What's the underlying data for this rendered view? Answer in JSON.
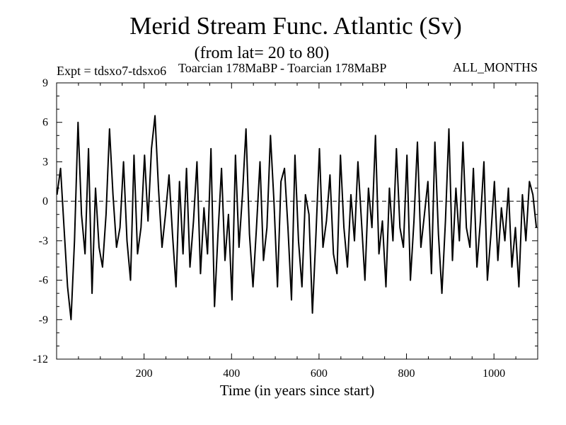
{
  "chart_data": {
    "type": "line",
    "title": "Merid Stream Func. Atlantic (Sv)",
    "subtitle": "(from lat= 20 to 80)",
    "expt_label": "Expt = tdsxo7-tdsxo6",
    "run_label": "Toarcian 178MaBP - Toarcian 178MaBP",
    "months_label": "ALL_MONTHS",
    "xlabel": "Time (in years since start)",
    "ylabel": "",
    "xlim": [
      0,
      1100
    ],
    "ylim": [
      -12,
      9
    ],
    "xticks": [
      200,
      400,
      600,
      800,
      1000
    ],
    "yticks": [
      -12,
      -9,
      -6,
      -3,
      0,
      3,
      6,
      9
    ],
    "zero_line": "dashed",
    "grid": false,
    "series": [
      {
        "color": "#000000",
        "x": [
          1,
          9,
          17,
          25,
          33,
          41,
          49,
          57,
          65,
          73,
          81,
          89,
          97,
          105,
          113,
          121,
          129,
          137,
          145,
          153,
          161,
          169,
          177,
          185,
          193,
          201,
          209,
          217,
          225,
          233,
          241,
          249,
          257,
          265,
          273,
          281,
          289,
          297,
          305,
          313,
          321,
          329,
          337,
          345,
          353,
          361,
          369,
          377,
          385,
          393,
          401,
          409,
          417,
          425,
          433,
          441,
          449,
          457,
          465,
          473,
          481,
          489,
          497,
          505,
          513,
          521,
          529,
          537,
          545,
          553,
          561,
          569,
          577,
          585,
          593,
          601,
          609,
          617,
          625,
          633,
          641,
          649,
          657,
          665,
          673,
          681,
          689,
          697,
          705,
          713,
          721,
          729,
          737,
          745,
          753,
          761,
          769,
          777,
          785,
          793,
          801,
          809,
          817,
          825,
          833,
          841,
          849,
          857,
          865,
          873,
          881,
          889,
          897,
          905,
          913,
          921,
          929,
          937,
          945,
          953,
          961,
          969,
          977,
          985,
          993,
          1001,
          1009,
          1017,
          1025,
          1033,
          1041,
          1049,
          1057,
          1065,
          1073,
          1081,
          1089,
          1097
        ],
        "values": [
          0.5,
          2.5,
          -2.0,
          -6.5,
          -9.0,
          -3.0,
          6.0,
          -1.0,
          -4.0,
          4.0,
          -7.0,
          1.0,
          -3.5,
          -5.0,
          -1.0,
          5.5,
          0.5,
          -3.5,
          -2.0,
          3.0,
          -3.0,
          -6.0,
          3.5,
          -4.0,
          -2.0,
          3.5,
          -1.5,
          4.0,
          6.5,
          1.0,
          -3.5,
          -1.0,
          2.0,
          -2.5,
          -6.5,
          1.5,
          -4.0,
          2.5,
          -5.0,
          -1.5,
          3.0,
          -5.5,
          -0.5,
          -4.0,
          4.0,
          -8.0,
          -2.5,
          2.5,
          -4.5,
          -1.0,
          -7.5,
          3.5,
          -3.5,
          0.5,
          5.5,
          -2.5,
          -6.5,
          -2.0,
          3.0,
          -4.5,
          -2.0,
          5.0,
          0.0,
          -6.5,
          1.5,
          2.5,
          -2.0,
          -7.5,
          3.5,
          -3.0,
          -6.5,
          0.5,
          -1.0,
          -8.5,
          -2.5,
          4.0,
          -3.5,
          -1.5,
          2.0,
          -4.0,
          -5.5,
          3.5,
          -2.0,
          -5.0,
          0.5,
          -3.0,
          3.0,
          -1.5,
          -6.0,
          1.0,
          -2.0,
          5.0,
          -4.0,
          -1.5,
          -6.5,
          1.0,
          -3.0,
          4.0,
          -2.0,
          -3.5,
          3.5,
          -6.0,
          -1.5,
          4.5,
          -3.5,
          -1.0,
          1.5,
          -5.5,
          4.5,
          -2.5,
          -7.0,
          -1.5,
          5.5,
          -4.5,
          1.0,
          -3.0,
          4.5,
          -2.0,
          -3.5,
          2.5,
          -5.0,
          -1.5,
          3.0,
          -6.0,
          -2.5,
          1.5,
          -4.5,
          -0.5,
          -3.0,
          1.0,
          -5.0,
          -2.0,
          -6.5,
          0.5,
          -3.0,
          1.5,
          0.5,
          -2.0
        ]
      }
    ]
  }
}
